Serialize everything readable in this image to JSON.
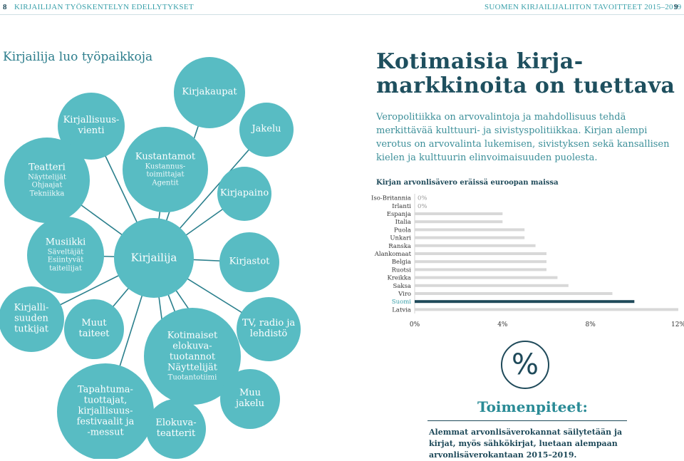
{
  "header": {
    "left_page": "8",
    "left_title": "KIRJAILIJAN TYÖSKENTELYN EDELLYTYKSET",
    "right_title": "SUOMEN KIRJAILIJALIITON TAVOITTEET 2015–2019",
    "right_page": "9"
  },
  "network": {
    "title": "Kirjailija luo työpaikkoja",
    "nodes": [
      {
        "main": "Kirjakaupat",
        "sub": ""
      },
      {
        "main": "Kirjallisuus-\nvienti",
        "sub": ""
      },
      {
        "main": "Teatteri",
        "sub": "Näyttelijät\nOhjaajat\nTekniikka"
      },
      {
        "main": "Kustantamot",
        "sub": "Kustannus-\ntoimittajat\nAgentit"
      },
      {
        "main": "Jakelu",
        "sub": ""
      },
      {
        "main": "Kirjapaino",
        "sub": ""
      },
      {
        "main": "Musiikki",
        "sub": "Säveltäjät\nEsiintyvät\ntaiteilijat"
      },
      {
        "main": "Kirjailija",
        "sub": ""
      },
      {
        "main": "Kirjastot",
        "sub": ""
      },
      {
        "main": "Kirjalli-\nsuuden\ntutkijat",
        "sub": ""
      },
      {
        "main": "Muut\ntaiteet",
        "sub": ""
      },
      {
        "main": "Kotimaiset\nelokuva-\ntuotannot\nNäyttelijät",
        "sub": "Tuotantotiimi"
      },
      {
        "main": "TV, radio ja\nlehdistö",
        "sub": ""
      },
      {
        "main": "Tapahtuma-\ntuottajat,\nkirjallisuus-\nfestivaalit ja\n-messut",
        "sub": ""
      },
      {
        "main": "Muu\njakelu",
        "sub": ""
      },
      {
        "main": "Elokuva-\nteatterit",
        "sub": ""
      }
    ]
  },
  "article": {
    "title_line1": "Kotimaisia kirja-",
    "title_line2": "markkinoita on tuettava",
    "body": "Veropolitiikka on arvovalintoja ja mahdollisuus tehdä merkittävää kulttuuri- ja sivistyspolitiikkaa. Kirjan alempi verotus on arvovalinta lukemisen, sivistyksen sekä kansallisen kielen ja kulttuurin elinvoimaisuuden puolesta."
  },
  "chart_data": {
    "type": "bar",
    "title": "Kirjan arvonlisävero eräissä euroopan maissa",
    "orientation": "horizontal",
    "categories": [
      "Iso-Britannia",
      "Irlanti",
      "Espanja",
      "Italia",
      "Puola",
      "Unkari",
      "Ranska",
      "Alankomaat",
      "Belgia",
      "Ruotsi",
      "Kreikka",
      "Saksa",
      "Viro",
      "Suomi",
      "Latvia"
    ],
    "values": [
      0,
      0,
      4,
      4,
      5,
      5,
      5.5,
      6,
      6,
      6,
      6.5,
      7,
      9,
      10,
      12
    ],
    "value_labels": [
      "0%",
      "0%",
      "",
      "",
      "",
      "",
      "",
      "",
      "",
      "",
      "",
      "",
      "",
      "",
      ""
    ],
    "highlight": "Suomi",
    "xticks": [
      "0%",
      "4%",
      "8%",
      "12%"
    ],
    "xlim": [
      0,
      12
    ],
    "colors": {
      "bar": "#d8d8d8",
      "highlight": "#1f4a5a",
      "highlight_label": "#3aa0aa",
      "label": "#333333"
    }
  },
  "actions": {
    "icon": "percent-icon",
    "symbol": "%",
    "title": "Toimenpiteet:",
    "text": "Alemmat arvonlisäverokannat säilytetään ja kirjat, myös sähkökirjat, luetaan alempaan arvonlisäverokantaan 2015–2019."
  },
  "colors": {
    "bubble": "#58bcc3",
    "accent": "#2a8b96",
    "dark": "#1f4a5a"
  }
}
